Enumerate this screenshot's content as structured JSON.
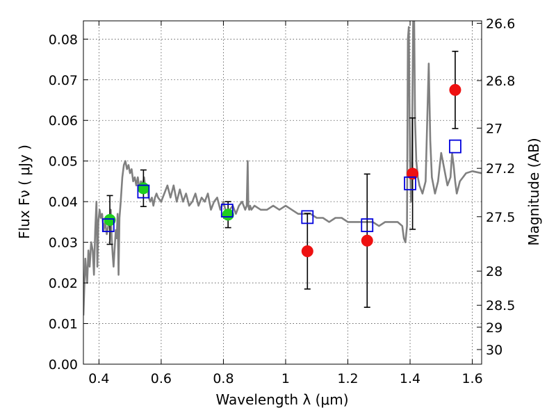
{
  "chart_data": {
    "type": "scatter",
    "title": "",
    "xlabel": "Wavelength  λ (μm)",
    "ylabel": "Flux  Fν  ( μJy )",
    "y2label": "Magnitude (AB)",
    "xlim": [
      0.35,
      1.63
    ],
    "ylim": [
      0.0,
      0.0845
    ],
    "grid": true,
    "x_ticks": [
      0.4,
      0.6,
      0.8,
      1.0,
      1.2,
      1.4,
      1.6
    ],
    "x_tick_labels": [
      "0.4",
      "0.6",
      "0.8",
      "1",
      "1.2",
      "1.4",
      "1.6"
    ],
    "y_ticks": [
      0.0,
      0.01,
      0.02,
      0.03,
      0.04,
      0.05,
      0.06,
      0.07,
      0.08
    ],
    "y_tick_labels": [
      "0.00",
      "0.01",
      "0.02",
      "0.03",
      "0.04",
      "0.05",
      "0.06",
      "0.07",
      "0.08"
    ],
    "y2_ticks": [
      {
        "label": "26.6",
        "flux": 0.0839
      },
      {
        "label": "26.8",
        "flux": 0.0698
      },
      {
        "label": "27",
        "flux": 0.0581
      },
      {
        "label": "27.2",
        "flux": 0.0482
      },
      {
        "label": "27.5",
        "flux": 0.0363
      },
      {
        "label": "28",
        "flux": 0.0229
      },
      {
        "label": "28.5",
        "flux": 0.0145
      },
      {
        "label": "29",
        "flux": 0.0091
      },
      {
        "label": "30",
        "flux": 0.0036
      }
    ],
    "colors": {
      "model": "#808080",
      "green_points": "#1fcf1f",
      "red_points": "#ee1111",
      "squares": "#0000dd",
      "errorbars": "#000000"
    },
    "series": [
      {
        "kind": "line",
        "x": [
          0.35,
          0.356,
          0.362,
          0.366,
          0.37,
          0.375,
          0.38,
          0.384,
          0.388,
          0.392,
          0.395,
          0.398,
          0.402,
          0.406,
          0.41,
          0.415,
          0.42,
          0.425,
          0.43,
          0.435,
          0.438,
          0.441,
          0.444,
          0.447,
          0.45,
          0.454,
          0.457,
          0.46,
          0.463,
          0.466,
          0.47,
          0.475,
          0.48,
          0.485,
          0.49,
          0.495,
          0.5,
          0.505,
          0.51,
          0.515,
          0.52,
          0.525,
          0.53,
          0.535,
          0.54,
          0.545,
          0.55,
          0.555,
          0.56,
          0.565,
          0.57,
          0.575,
          0.58,
          0.585,
          0.59,
          0.6,
          0.61,
          0.62,
          0.63,
          0.64,
          0.65,
          0.66,
          0.67,
          0.68,
          0.69,
          0.7,
          0.71,
          0.72,
          0.73,
          0.74,
          0.75,
          0.76,
          0.77,
          0.78,
          0.79,
          0.8,
          0.81,
          0.82,
          0.83,
          0.84,
          0.85,
          0.86,
          0.87,
          0.875,
          0.878,
          0.88,
          0.883,
          0.886,
          0.89,
          0.9,
          0.92,
          0.94,
          0.96,
          0.98,
          1.0,
          1.02,
          1.04,
          1.06,
          1.08,
          1.1,
          1.12,
          1.14,
          1.16,
          1.18,
          1.2,
          1.22,
          1.24,
          1.26,
          1.28,
          1.3,
          1.32,
          1.34,
          1.36,
          1.375,
          1.38,
          1.385,
          1.39,
          1.393,
          1.396,
          1.4,
          1.403,
          1.406,
          1.41,
          1.413,
          1.416,
          1.42,
          1.425,
          1.43,
          1.44,
          1.45,
          1.455,
          1.46,
          1.465,
          1.47,
          1.48,
          1.49,
          1.5,
          1.51,
          1.52,
          1.53,
          1.535,
          1.54,
          1.545,
          1.55,
          1.56,
          1.57,
          1.58,
          1.6,
          1.63
        ],
        "y": [
          0.012,
          0.026,
          0.02,
          0.028,
          0.024,
          0.03,
          0.028,
          0.022,
          0.033,
          0.04,
          0.024,
          0.035,
          0.038,
          0.036,
          0.037,
          0.033,
          0.035,
          0.032,
          0.034,
          0.036,
          0.038,
          0.031,
          0.027,
          0.024,
          0.028,
          0.033,
          0.031,
          0.037,
          0.022,
          0.036,
          0.04,
          0.046,
          0.049,
          0.05,
          0.048,
          0.049,
          0.047,
          0.048,
          0.045,
          0.046,
          0.044,
          0.046,
          0.043,
          0.045,
          0.044,
          0.046,
          0.043,
          0.044,
          0.041,
          0.04,
          0.041,
          0.039,
          0.041,
          0.042,
          0.041,
          0.04,
          0.042,
          0.044,
          0.041,
          0.044,
          0.04,
          0.043,
          0.04,
          0.042,
          0.039,
          0.04,
          0.042,
          0.039,
          0.041,
          0.04,
          0.042,
          0.038,
          0.04,
          0.041,
          0.038,
          0.04,
          0.037,
          0.038,
          0.039,
          0.037,
          0.039,
          0.04,
          0.038,
          0.039,
          0.05,
          0.039,
          0.038,
          0.039,
          0.038,
          0.039,
          0.038,
          0.038,
          0.039,
          0.038,
          0.039,
          0.038,
          0.037,
          0.037,
          0.037,
          0.036,
          0.036,
          0.035,
          0.036,
          0.036,
          0.035,
          0.035,
          0.035,
          0.035,
          0.035,
          0.034,
          0.035,
          0.035,
          0.035,
          0.034,
          0.031,
          0.03,
          0.034,
          0.08,
          0.083,
          0.05,
          0.04,
          0.05,
          0.085,
          0.085,
          0.06,
          0.05,
          0.046,
          0.044,
          0.042,
          0.045,
          0.06,
          0.074,
          0.055,
          0.046,
          0.042,
          0.045,
          0.052,
          0.048,
          0.044,
          0.046,
          0.052,
          0.049,
          0.045,
          0.042,
          0.045,
          0.046,
          0.047,
          0.0475,
          0.047
        ]
      },
      {
        "kind": "points",
        "name": "green",
        "marker": "circle",
        "x": [
          0.435,
          0.543,
          0.815
        ],
        "y": [
          0.0355,
          0.0433,
          0.0368
        ],
        "yerr": [
          0.006,
          0.0045,
          0.0032
        ]
      },
      {
        "kind": "points",
        "name": "red",
        "marker": "circle",
        "x": [
          1.07,
          1.262,
          1.408,
          1.545
        ],
        "y": [
          0.0278,
          0.0304,
          0.0469,
          0.0675
        ],
        "yerr": [
          0.0093,
          0.0164,
          0.0137,
          0.0095
        ]
      },
      {
        "kind": "points",
        "name": "squares",
        "marker": "square",
        "x": [
          0.43,
          0.543,
          0.812,
          1.07,
          1.262,
          1.4,
          1.545
        ],
        "y": [
          0.0342,
          0.0425,
          0.0378,
          0.0362,
          0.0342,
          0.0445,
          0.0536
        ]
      }
    ]
  }
}
